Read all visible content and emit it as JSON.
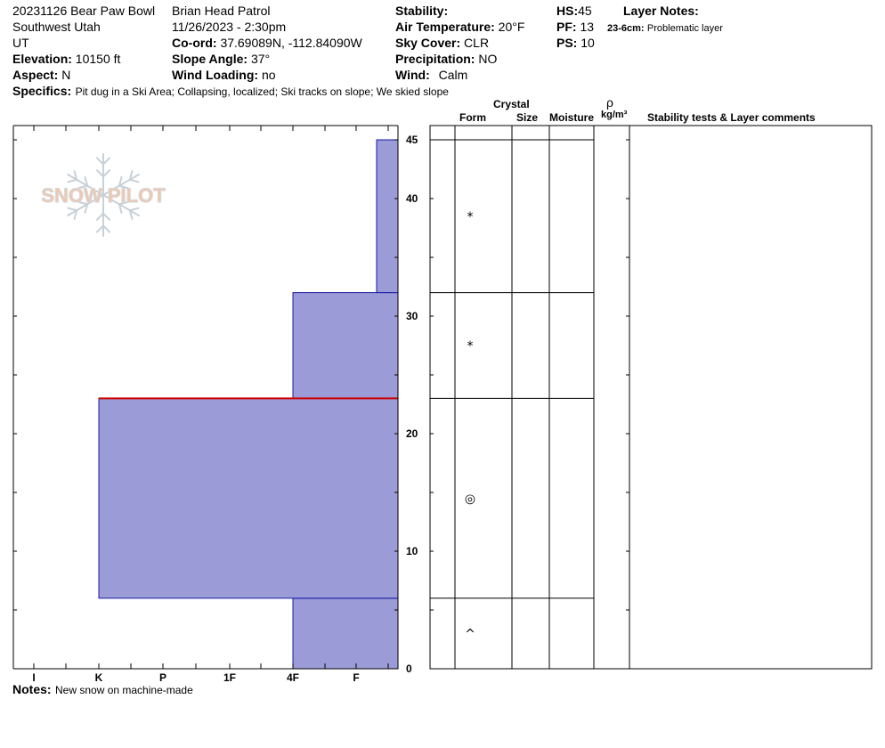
{
  "header": {
    "site_title": "20231126 Bear Paw Bowl",
    "region": "Southwest Utah",
    "state": "UT",
    "elevation_label": "Elevation:",
    "elevation_value": "10150 ft",
    "aspect_label": "Aspect:",
    "aspect_value": "N",
    "observer": "Brian Head Patrol",
    "datetime": "11/26/2023 - 2:30pm",
    "coord_label": "Co-ord:",
    "coord_value": "37.69089N, -112.84090W",
    "slope_label": "Slope Angle:",
    "slope_value": "37°",
    "wind_loading_label": "Wind Loading:",
    "wind_loading_value": "no",
    "stability_label": "Stability:",
    "air_temp_label": "Air Temperature:",
    "air_temp_value": "20°F",
    "sky_label": "Sky Cover:",
    "sky_value": "CLR",
    "precip_label": "Precipitation:",
    "precip_value": "NO",
    "wind_label": "Wind:",
    "wind_value": "Calm",
    "hs_label": "HS:",
    "hs_value": "45",
    "pf_label": "PF:",
    "pf_value": "13",
    "ps_label": "PS:",
    "ps_value": "10",
    "layer_notes_label": "Layer Notes:",
    "layer_note_range": "23-6cm:",
    "layer_note_text": "Problematic layer",
    "specifics_label": "Specifics:",
    "specifics_text": "Pit dug in a Ski Area;  Collapsing, localized;  Ski tracks on slope;  We skied slope"
  },
  "logo": {
    "text": "SNOW PILOT",
    "colors": {
      "text_fill": "#f2c4a8",
      "text_stroke": "#d9d9d9",
      "flake": "#c8d0d8"
    }
  },
  "table": {
    "crystal_header": "Crystal",
    "form_header": "Form",
    "size_header": "Size",
    "moisture_header": "Moisture",
    "rho_header": "ρ",
    "density_header": "kg/m³",
    "comments_header": "Stability tests & Layer comments"
  },
  "notes": {
    "label": "Notes:",
    "text": "New snow on machine-made"
  },
  "chart_data": {
    "type": "bar",
    "subtype": "snow-profile-hardness",
    "colors": {
      "fill": "#9b9bd7",
      "edge": "#1a1aa6",
      "problem_line": "#cc0000"
    },
    "y_label": "",
    "y_range": [
      0,
      45
    ],
    "y_ticks": [
      0,
      10,
      20,
      30,
      40,
      45
    ],
    "hardness_scale": [
      "I",
      "K",
      "P",
      "1F",
      "4F",
      "F"
    ],
    "layers": [
      {
        "bottom": 0,
        "top": 6,
        "hardness": "4F",
        "form": "^"
      },
      {
        "bottom": 6,
        "top": 23,
        "hardness": "K",
        "form": "◎"
      },
      {
        "bottom": 23,
        "top": 32,
        "hardness": "4F",
        "form": "*"
      },
      {
        "bottom": 32,
        "top": 45,
        "hardness": "F+",
        "form": "*"
      }
    ],
    "problematic_layer_top": 23
  }
}
